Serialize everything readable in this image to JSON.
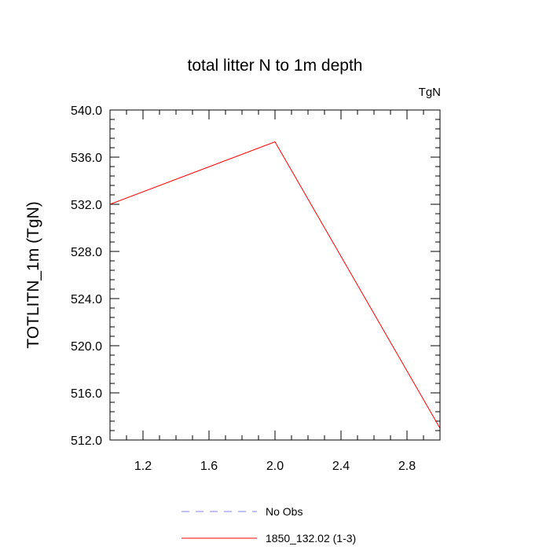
{
  "chart_data": {
    "type": "line",
    "title": "total litter N to 1m depth",
    "units_label": "TgN",
    "xlabel": "",
    "ylabel": "TOTLITN_1m  (TgN)",
    "xlim": [
      1.0,
      3.0
    ],
    "ylim": [
      512.0,
      540.0
    ],
    "x_ticks": [
      1.2,
      1.6,
      2.0,
      2.4,
      2.8
    ],
    "x_tick_labels": [
      "1.2",
      "1.6",
      "2.0",
      "2.4",
      "2.8"
    ],
    "y_ticks": [
      512.0,
      516.0,
      520.0,
      524.0,
      528.0,
      532.0,
      536.0,
      540.0
    ],
    "y_tick_labels": [
      "512.0",
      "516.0",
      "520.0",
      "524.0",
      "528.0",
      "532.0",
      "536.0",
      "540.0"
    ],
    "grid": false,
    "legend_placement": "bottom",
    "series": [
      {
        "name": "No Obs",
        "color": "#8080ff",
        "style": "dashed",
        "x": [],
        "y": []
      },
      {
        "name": "1850_132.02 (1-3)",
        "color": "#ff0000",
        "style": "solid",
        "x": [
          1.0,
          2.0,
          3.0
        ],
        "y": [
          532.0,
          537.3,
          513.0
        ]
      }
    ]
  }
}
